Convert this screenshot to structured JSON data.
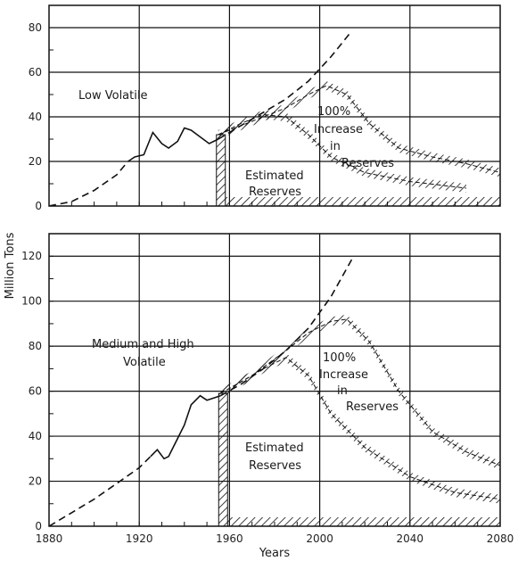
{
  "chart_data": [
    {
      "type": "line",
      "panel": "top",
      "xlim": [
        1880,
        2080
      ],
      "ylim": [
        0,
        90
      ],
      "y_ticks": [
        0,
        20,
        40,
        60,
        80
      ],
      "x_ticks": [
        1880,
        1920,
        1960,
        2000,
        2040,
        2080
      ],
      "grid": true,
      "annotations": {
        "category": "Low Volatile",
        "increase": [
          "100%",
          "Increase",
          "in",
          "Reserves"
        ],
        "estimated": [
          "Estimated",
          "Reserves"
        ]
      },
      "series": [
        {
          "style": "dashed",
          "x": [
            1880,
            1890,
            1900,
            1910,
            1915
          ],
          "y": [
            0,
            2,
            7,
            14,
            20
          ]
        },
        {
          "style": "solid",
          "x": [
            1915,
            1918,
            1922,
            1926,
            1930,
            1933,
            1937,
            1940,
            1943,
            1947,
            1951,
            1955
          ],
          "y": [
            20,
            22,
            23,
            33,
            28,
            26,
            29,
            35,
            34,
            31,
            28,
            30
          ]
        },
        {
          "style": "dashed",
          "x": [
            1955,
            1965,
            1975,
            1985,
            1995,
            2005,
            2013
          ],
          "y": [
            30,
            36,
            42,
            48,
            56,
            67,
            77
          ]
        },
        {
          "style": "hatched-band",
          "label": "estimated reserves",
          "x": [
            1955,
            1965,
            1975,
            1985,
            1995,
            2005,
            2020,
            2040,
            2065
          ],
          "y": [
            32,
            37,
            41,
            40,
            32,
            22,
            15,
            11,
            8
          ]
        },
        {
          "style": "hatched-band",
          "label": "100% increase in reserves",
          "x": [
            1955,
            1970,
            1985,
            1995,
            2003,
            2012,
            2022,
            2035,
            2050,
            2065,
            2080
          ],
          "y": [
            32,
            38,
            44,
            50,
            54,
            50,
            37,
            26,
            22,
            19,
            15
          ]
        }
      ]
    },
    {
      "type": "line",
      "panel": "bottom",
      "xlim": [
        1880,
        2080
      ],
      "ylim": [
        0,
        130
      ],
      "y_ticks": [
        0,
        20,
        40,
        60,
        80,
        100,
        120
      ],
      "x_ticks": [
        1880,
        1920,
        1960,
        2000,
        2040,
        2080
      ],
      "xlabel": "Years",
      "grid": true,
      "annotations": {
        "category": [
          "Medium and High",
          "Volatile"
        ],
        "increase": [
          "100%",
          "Increase",
          "in",
          "Reserves"
        ],
        "estimated": [
          "Estimated",
          "Reserves"
        ]
      },
      "series": [
        {
          "style": "dashed",
          "x": [
            1880,
            1890,
            1900,
            1910,
            1920,
            1925
          ],
          "y": [
            0,
            6,
            12,
            19,
            26,
            31
          ]
        },
        {
          "style": "solid",
          "x": [
            1925,
            1928,
            1931,
            1933,
            1936,
            1940,
            1943,
            1947,
            1950,
            1953,
            1956
          ],
          "y": [
            31,
            34,
            30,
            31,
            37,
            45,
            54,
            58,
            56,
            57,
            58
          ]
        },
        {
          "style": "dashed",
          "x": [
            1956,
            1965,
            1975,
            1985,
            1995,
            2005,
            2015
          ],
          "y": [
            58,
            63,
            70,
            78,
            88,
            102,
            120
          ]
        },
        {
          "style": "hatched-band",
          "label": "estimated reserves",
          "x": [
            1956,
            1965,
            1975,
            1985,
            1995,
            2005,
            2020,
            2040,
            2060,
            2080
          ],
          "y": [
            59,
            64,
            70,
            75,
            67,
            50,
            35,
            22,
            15,
            12
          ]
        },
        {
          "style": "hatched-band",
          "label": "100% increase in reserves",
          "x": [
            1956,
            1970,
            1985,
            1995,
            2005,
            2012,
            2022,
            2035,
            2050,
            2065,
            2080
          ],
          "y": [
            59,
            67,
            78,
            86,
            91,
            92,
            82,
            60,
            42,
            33,
            27
          ]
        }
      ]
    }
  ],
  "shared": {
    "ylabel": "Million Tons",
    "xlabel": "Years"
  }
}
